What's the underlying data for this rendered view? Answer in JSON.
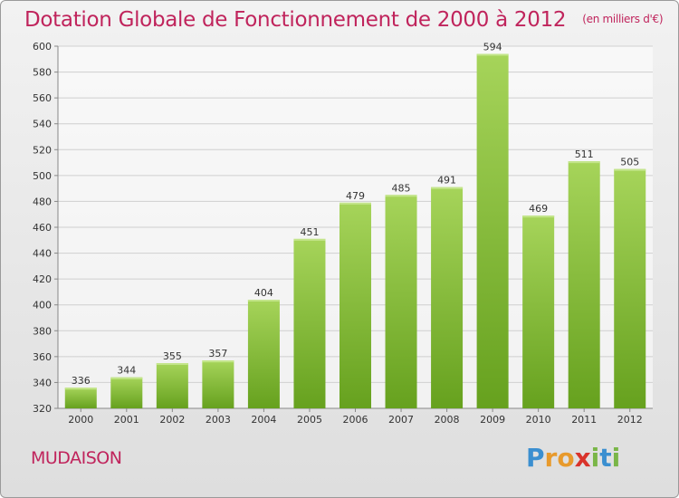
{
  "header": {
    "title": "Dotation Globale de Fonctionnement de 2000 à 2012",
    "unit": "(en milliers d'€)"
  },
  "footer": {
    "commune": "MUDAISON",
    "logo_letters": [
      "P",
      "r",
      "o",
      "x",
      "i",
      "t",
      "i"
    ],
    "logo_colors": [
      "#3b8fd0",
      "#e89a2c",
      "#e89a2c",
      "#d9332b",
      "#7ab648",
      "#3b8fd0",
      "#7ab648"
    ]
  },
  "colors": {
    "bar_top": "#a6d45a",
    "bar_bottom": "#66a11e",
    "title": "#c0245c",
    "grid": "#cfcfcf"
  },
  "chart_data": {
    "type": "bar",
    "title": "Dotation Globale de Fonctionnement de 2000 à 2012",
    "subtitle": "(en milliers d'€)",
    "xlabel": "",
    "ylabel": "",
    "categories": [
      "2000",
      "2001",
      "2002",
      "2003",
      "2004",
      "2005",
      "2006",
      "2007",
      "2008",
      "2009",
      "2010",
      "2011",
      "2012"
    ],
    "values": [
      336,
      344,
      355,
      357,
      404,
      451,
      479,
      485,
      491,
      594,
      469,
      511,
      505
    ],
    "ylim": [
      320,
      600
    ],
    "yticks": [
      320,
      340,
      360,
      380,
      400,
      420,
      440,
      460,
      480,
      500,
      520,
      540,
      560,
      580,
      600
    ],
    "grid": true,
    "data_labels": true
  }
}
